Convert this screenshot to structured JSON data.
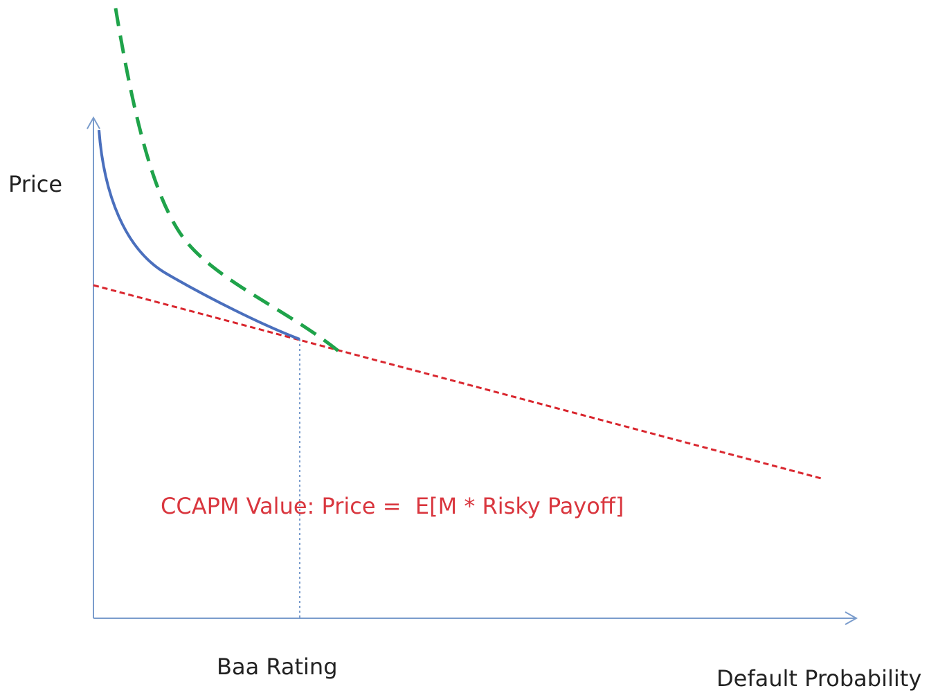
{
  "axis_labels": {
    "y": "Price",
    "x": "Default Probability"
  },
  "marker_label": "Baa Rating",
  "annotation": "CCAPM Value: Price =  E[M * Risky Payoff]"
}
